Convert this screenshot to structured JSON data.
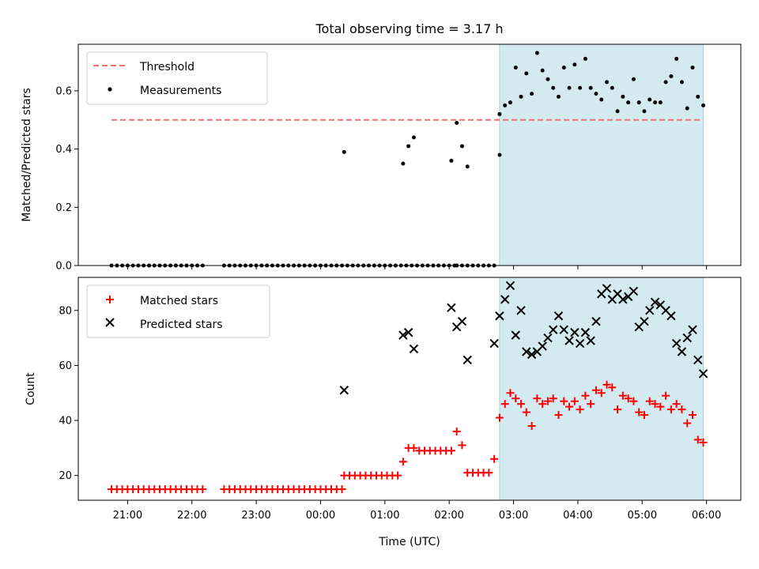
{
  "chart_data": [
    {
      "type": "scatter",
      "title": "Total observing time = 3.17 h",
      "xlabel": "",
      "ylabel": "Matched/Predicted stars",
      "ylim": [
        0,
        0.76
      ],
      "yticks": [
        "0.0",
        "0.2",
        "0.4",
        "0.6"
      ],
      "x_tick_labels_visible": false,
      "shaded_span": {
        "start": "02:47",
        "end": "05:57",
        "color": "#d2eaf0"
      },
      "threshold": {
        "name": "Threshold",
        "value": 0.5,
        "start": "20:45",
        "end": "05:57",
        "color": "#f07070"
      },
      "legend": {
        "position": "top-left",
        "entries": [
          "Threshold",
          "Measurements"
        ]
      },
      "series": [
        {
          "name": "Measurements",
          "color": "#000000",
          "marker": "dot",
          "x": [
            "20:45",
            "20:50",
            "20:55",
            "21:00",
            "21:05",
            "21:10",
            "21:15",
            "21:20",
            "21:25",
            "21:30",
            "21:35",
            "21:40",
            "21:45",
            "21:50",
            "21:55",
            "22:00",
            "22:05",
            "22:10",
            "22:30",
            "22:35",
            "22:40",
            "22:45",
            "22:50",
            "22:55",
            "23:00",
            "23:05",
            "23:10",
            "23:15",
            "23:20",
            "23:25",
            "23:30",
            "23:35",
            "23:40",
            "23:45",
            "23:50",
            "23:55",
            "00:00",
            "00:05",
            "00:10",
            "00:15",
            "00:20",
            "00:25",
            "00:30",
            "00:35",
            "00:40",
            "00:45",
            "00:50",
            "00:55",
            "01:00",
            "01:05",
            "01:10",
            "01:15",
            "01:20",
            "01:25",
            "01:30",
            "01:35",
            "01:40",
            "01:45",
            "01:50",
            "01:55",
            "02:00",
            "02:05",
            "02:07",
            "02:12",
            "02:17",
            "02:22",
            "02:27",
            "02:32",
            "02:37",
            "02:42",
            "02:47",
            "01:17",
            "01:22",
            "01:27",
            "02:02",
            "02:07",
            "02:12",
            "02:17",
            "00:22",
            "02:47",
            "02:52",
            "02:57",
            "03:02",
            "03:07",
            "03:12",
            "03:17",
            "03:22",
            "03:27",
            "03:32",
            "03:37",
            "03:42",
            "03:47",
            "03:52",
            "03:57",
            "04:02",
            "04:07",
            "04:12",
            "04:17",
            "04:22",
            "04:27",
            "04:32",
            "04:37",
            "04:42",
            "04:47",
            "04:52",
            "04:57",
            "05:02",
            "05:07",
            "05:12",
            "05:17",
            "05:22",
            "05:27",
            "05:32",
            "05:37",
            "05:42",
            "05:47",
            "05:52",
            "05:57"
          ],
          "y": [
            0,
            0,
            0,
            0,
            0,
            0,
            0,
            0,
            0,
            0,
            0,
            0,
            0,
            0,
            0,
            0,
            0,
            0,
            0,
            0,
            0,
            0,
            0,
            0,
            0,
            0,
            0,
            0,
            0,
            0,
            0,
            0,
            0,
            0,
            0,
            0,
            0,
            0,
            0,
            0,
            0,
            0,
            0,
            0,
            0,
            0,
            0,
            0,
            0,
            0,
            0,
            0,
            0,
            0,
            0,
            0,
            0,
            0,
            0,
            0,
            0,
            0,
            0,
            0,
            0,
            0,
            0,
            0,
            0,
            0,
            0.38,
            0.35,
            0.41,
            0.44,
            0.36,
            0.49,
            0.41,
            0.34,
            0.39,
            0.52,
            0.55,
            0.56,
            0.68,
            0.58,
            0.66,
            0.59,
            0.73,
            0.67,
            0.64,
            0.61,
            0.58,
            0.68,
            0.61,
            0.69,
            0.61,
            0.71,
            0.61,
            0.59,
            0.57,
            0.63,
            0.61,
            0.53,
            0.58,
            0.56,
            0.64,
            0.56,
            0.53,
            0.57,
            0.56,
            0.56,
            0.63,
            0.65,
            0.71,
            0.63,
            0.54,
            0.68,
            0.58,
            0.55
          ]
        }
      ]
    },
    {
      "type": "scatter",
      "title": "",
      "xlabel": "Time (UTC)",
      "ylabel": "Count",
      "ylim": [
        11,
        92
      ],
      "yticks": [
        "20",
        "40",
        "60",
        "80"
      ],
      "x_tick_labels": [
        "21:00",
        "22:00",
        "23:00",
        "00:00",
        "01:00",
        "02:00",
        "03:00",
        "04:00",
        "05:00",
        "06:00"
      ],
      "shaded_span": {
        "start": "02:47",
        "end": "05:57",
        "color": "#d2eaf0"
      },
      "legend": {
        "position": "top-left",
        "entries": [
          "Matched stars",
          "Predicted stars"
        ]
      },
      "series": [
        {
          "name": "Matched stars",
          "color": "#ff0000",
          "marker": "plus",
          "x": [
            "20:45",
            "20:50",
            "20:55",
            "21:00",
            "21:05",
            "21:10",
            "21:15",
            "21:20",
            "21:25",
            "21:30",
            "21:35",
            "21:40",
            "21:45",
            "21:50",
            "21:55",
            "22:00",
            "22:05",
            "22:10",
            "22:30",
            "22:35",
            "22:40",
            "22:45",
            "22:50",
            "22:55",
            "23:00",
            "23:05",
            "23:10",
            "23:15",
            "23:20",
            "23:25",
            "23:30",
            "23:35",
            "23:40",
            "23:45",
            "23:50",
            "23:55",
            "00:00",
            "00:05",
            "00:10",
            "00:15",
            "00:20",
            "00:22",
            "00:27",
            "00:32",
            "00:37",
            "00:42",
            "00:47",
            "00:52",
            "00:57",
            "01:02",
            "01:07",
            "01:12",
            "01:17",
            "01:22",
            "01:27",
            "01:32",
            "01:37",
            "01:42",
            "01:47",
            "01:52",
            "01:57",
            "02:02",
            "02:07",
            "02:12",
            "02:17",
            "02:22",
            "02:27",
            "02:32",
            "02:37",
            "02:42",
            "02:47",
            "02:52",
            "02:57",
            "03:02",
            "03:07",
            "03:12",
            "03:17",
            "03:22",
            "03:27",
            "03:32",
            "03:37",
            "03:42",
            "03:47",
            "03:52",
            "03:57",
            "04:02",
            "04:07",
            "04:12",
            "04:17",
            "04:22",
            "04:27",
            "04:32",
            "04:37",
            "04:42",
            "04:47",
            "04:52",
            "04:57",
            "05:02",
            "05:07",
            "05:12",
            "05:17",
            "05:22",
            "05:27",
            "05:32",
            "05:37",
            "05:42",
            "05:47",
            "05:52",
            "05:57"
          ],
          "y": [
            15,
            15,
            15,
            15,
            15,
            15,
            15,
            15,
            15,
            15,
            15,
            15,
            15,
            15,
            15,
            15,
            15,
            15,
            15,
            15,
            15,
            15,
            15,
            15,
            15,
            15,
            15,
            15,
            15,
            15,
            15,
            15,
            15,
            15,
            15,
            15,
            15,
            15,
            15,
            15,
            15,
            20,
            20,
            20,
            20,
            20,
            20,
            20,
            20,
            20,
            20,
            20,
            25,
            30,
            30,
            29,
            29,
            29,
            29,
            29,
            29,
            29,
            36,
            31,
            21,
            21,
            21,
            21,
            21,
            26,
            41,
            46,
            50,
            48,
            46,
            43,
            38,
            48,
            46,
            47,
            48,
            42,
            47,
            45,
            47,
            44,
            49,
            46,
            51,
            50,
            53,
            52,
            44,
            49,
            48,
            47,
            43,
            42,
            47,
            46,
            45,
            49,
            44,
            46,
            44,
            39,
            42,
            33,
            32
          ]
        },
        {
          "name": "Predicted stars",
          "color": "#000000",
          "marker": "cross",
          "x": [
            "00:22",
            "01:17",
            "01:22",
            "01:27",
            "02:02",
            "02:07",
            "02:12",
            "02:17",
            "02:42",
            "02:47",
            "02:52",
            "02:57",
            "03:02",
            "03:07",
            "03:12",
            "03:17",
            "03:22",
            "03:27",
            "03:32",
            "03:37",
            "03:42",
            "03:47",
            "03:52",
            "03:57",
            "04:02",
            "04:07",
            "04:12",
            "04:17",
            "04:22",
            "04:27",
            "04:32",
            "04:37",
            "04:42",
            "04:47",
            "04:52",
            "04:57",
            "05:02",
            "05:07",
            "05:12",
            "05:17",
            "05:22",
            "05:27",
            "05:32",
            "05:37",
            "05:42",
            "05:47",
            "05:52",
            "05:57"
          ],
          "y": [
            51,
            71,
            72,
            66,
            81,
            74,
            76,
            62,
            68,
            78,
            84,
            89,
            71,
            80,
            65,
            64,
            65,
            67,
            70,
            73,
            78,
            73,
            69,
            72,
            68,
            72,
            69,
            76,
            86,
            88,
            84,
            86,
            84,
            85,
            87,
            74,
            76,
            80,
            83,
            82,
            80,
            78,
            68,
            65,
            70,
            73,
            62,
            57
          ]
        }
      ]
    }
  ]
}
